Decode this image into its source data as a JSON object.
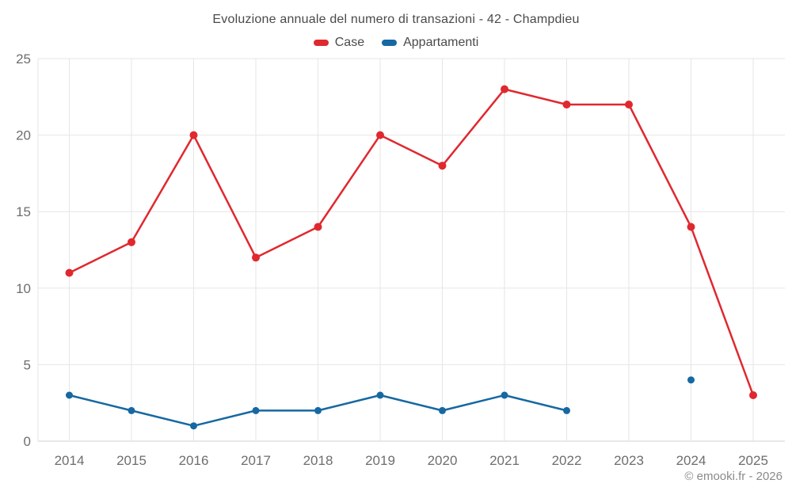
{
  "title": "Evoluzione annuale del numero di transazioni - 42 - Champdieu",
  "watermark": "© emooki.fr - 2026",
  "colors": {
    "case_red": "#e0282f",
    "appartamenti_blue": "#1668a2",
    "grid": "#e6e6e6",
    "axis": "#d2d2d2",
    "tick_text": "#6e6e6e",
    "title_text": "#4a4a4a",
    "watermark_text": "#8a8a8a"
  },
  "chart_data": {
    "type": "line",
    "title": "Evoluzione annuale del numero di transazioni - 42 - Champdieu",
    "categories": [
      "2014",
      "2015",
      "2016",
      "2017",
      "2018",
      "2019",
      "2020",
      "2021",
      "2022",
      "2023",
      "2024",
      "2025"
    ],
    "series": [
      {
        "name": "Case",
        "color": "#e0282f",
        "marker_radius": 5,
        "values": [
          11,
          13,
          20,
          12,
          14,
          20,
          18,
          23,
          22,
          22,
          14,
          3
        ]
      },
      {
        "name": "Appartamenti",
        "color": "#1668a2",
        "marker_radius": 4.5,
        "values": [
          3,
          2,
          1,
          2,
          2,
          3,
          2,
          3,
          2,
          null,
          4,
          null
        ]
      }
    ],
    "xlabel": "",
    "ylabel": "",
    "ylim": [
      0,
      25
    ],
    "yticks": [
      0,
      5,
      10,
      15,
      20,
      25
    ],
    "grid": true,
    "legend_position": "top"
  }
}
